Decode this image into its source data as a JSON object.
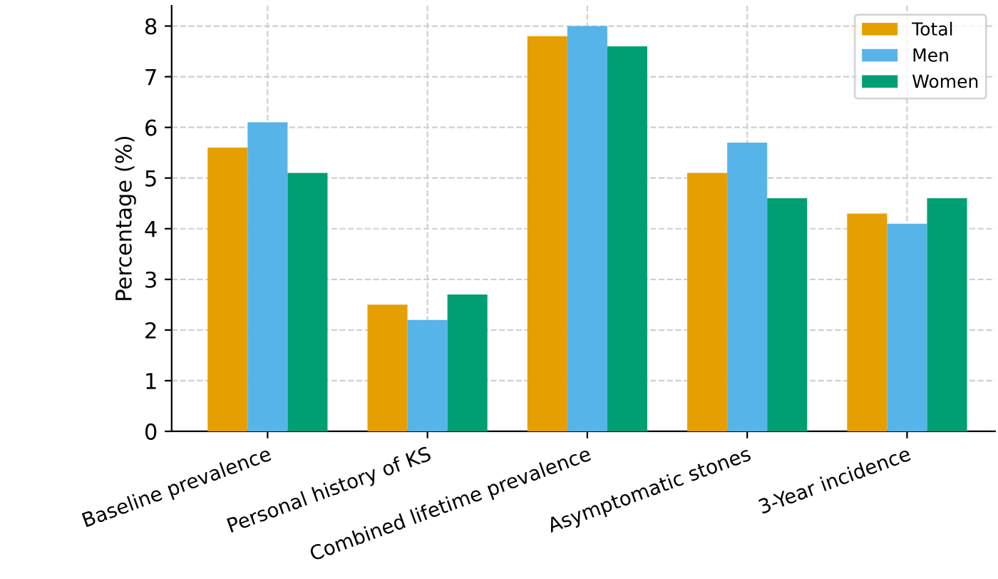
{
  "chart_data": {
    "type": "bar",
    "ylabel": "Percentage (%)",
    "categories": [
      "Baseline prevalence",
      "Personal history of KS",
      "Combined lifetime prevalence",
      "Asymptomatic stones",
      "3-Year incidence"
    ],
    "series": [
      {
        "name": "Total",
        "color": "#e69f00",
        "values": [
          5.6,
          2.5,
          7.8,
          5.1,
          4.3
        ]
      },
      {
        "name": "Men",
        "color": "#56b4e9",
        "values": [
          6.1,
          2.2,
          8.0,
          5.7,
          4.1
        ]
      },
      {
        "name": "Women",
        "color": "#009e73",
        "values": [
          5.1,
          2.7,
          7.6,
          4.6,
          4.6
        ]
      }
    ],
    "ylim": [
      0,
      8.4
    ],
    "yticks": [
      0,
      1,
      2,
      3,
      4,
      5,
      6,
      7,
      8
    ],
    "grid": true,
    "legend": "top right"
  }
}
